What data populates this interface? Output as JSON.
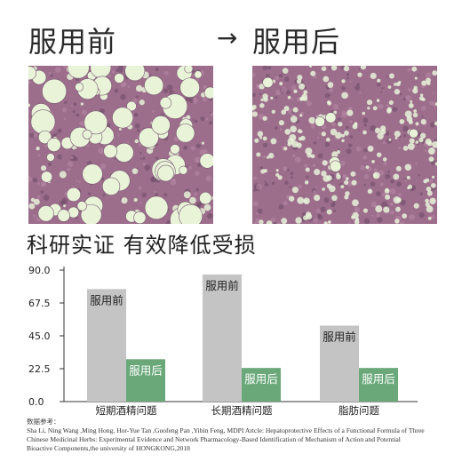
{
  "header": {
    "before": "服用前",
    "arrow": "→",
    "after": "服用后"
  },
  "images": {
    "before_name": "micrograph-before",
    "after_name": "micrograph-after",
    "tissue_color": "#9c6e8c",
    "vacuole_color": "#e8f3d8"
  },
  "headline": "科研实证 有效降低受损",
  "chart_data": {
    "type": "bar",
    "categories": [
      "短期酒精问题",
      "长期酒精问题",
      "脂肪问题"
    ],
    "series": [
      {
        "name": "服用前",
        "values": [
          77,
          87,
          52
        ],
        "color": "#c4c4c4"
      },
      {
        "name": "服用后",
        "values": [
          29,
          23,
          23
        ],
        "color": "#6aa879"
      }
    ],
    "yticks": [
      "0.0",
      "22.5",
      "45.0",
      "67.5",
      "90.0"
    ],
    "ylim": [
      0,
      90
    ],
    "xlabel": "",
    "ylabel": "",
    "title": "",
    "legend": "none (labels on bars)"
  },
  "references": {
    "title": "数据参考：",
    "lines": [
      "Sha Li, Ning Wang ,Ming Hong, Hor-Yue Tan ,Guofeng Pan ,Yibin Feng, MDPI Artcle: Hepatoprotective Effects of a Functional Formula of Three",
      "Chinese Medicinal Herbs: Experimental Evidence and Network Pharmacology-Based Identification of Mechanism of Action and Potential",
      "Bioactive Components,the university of HONGKONG,2018"
    ]
  }
}
